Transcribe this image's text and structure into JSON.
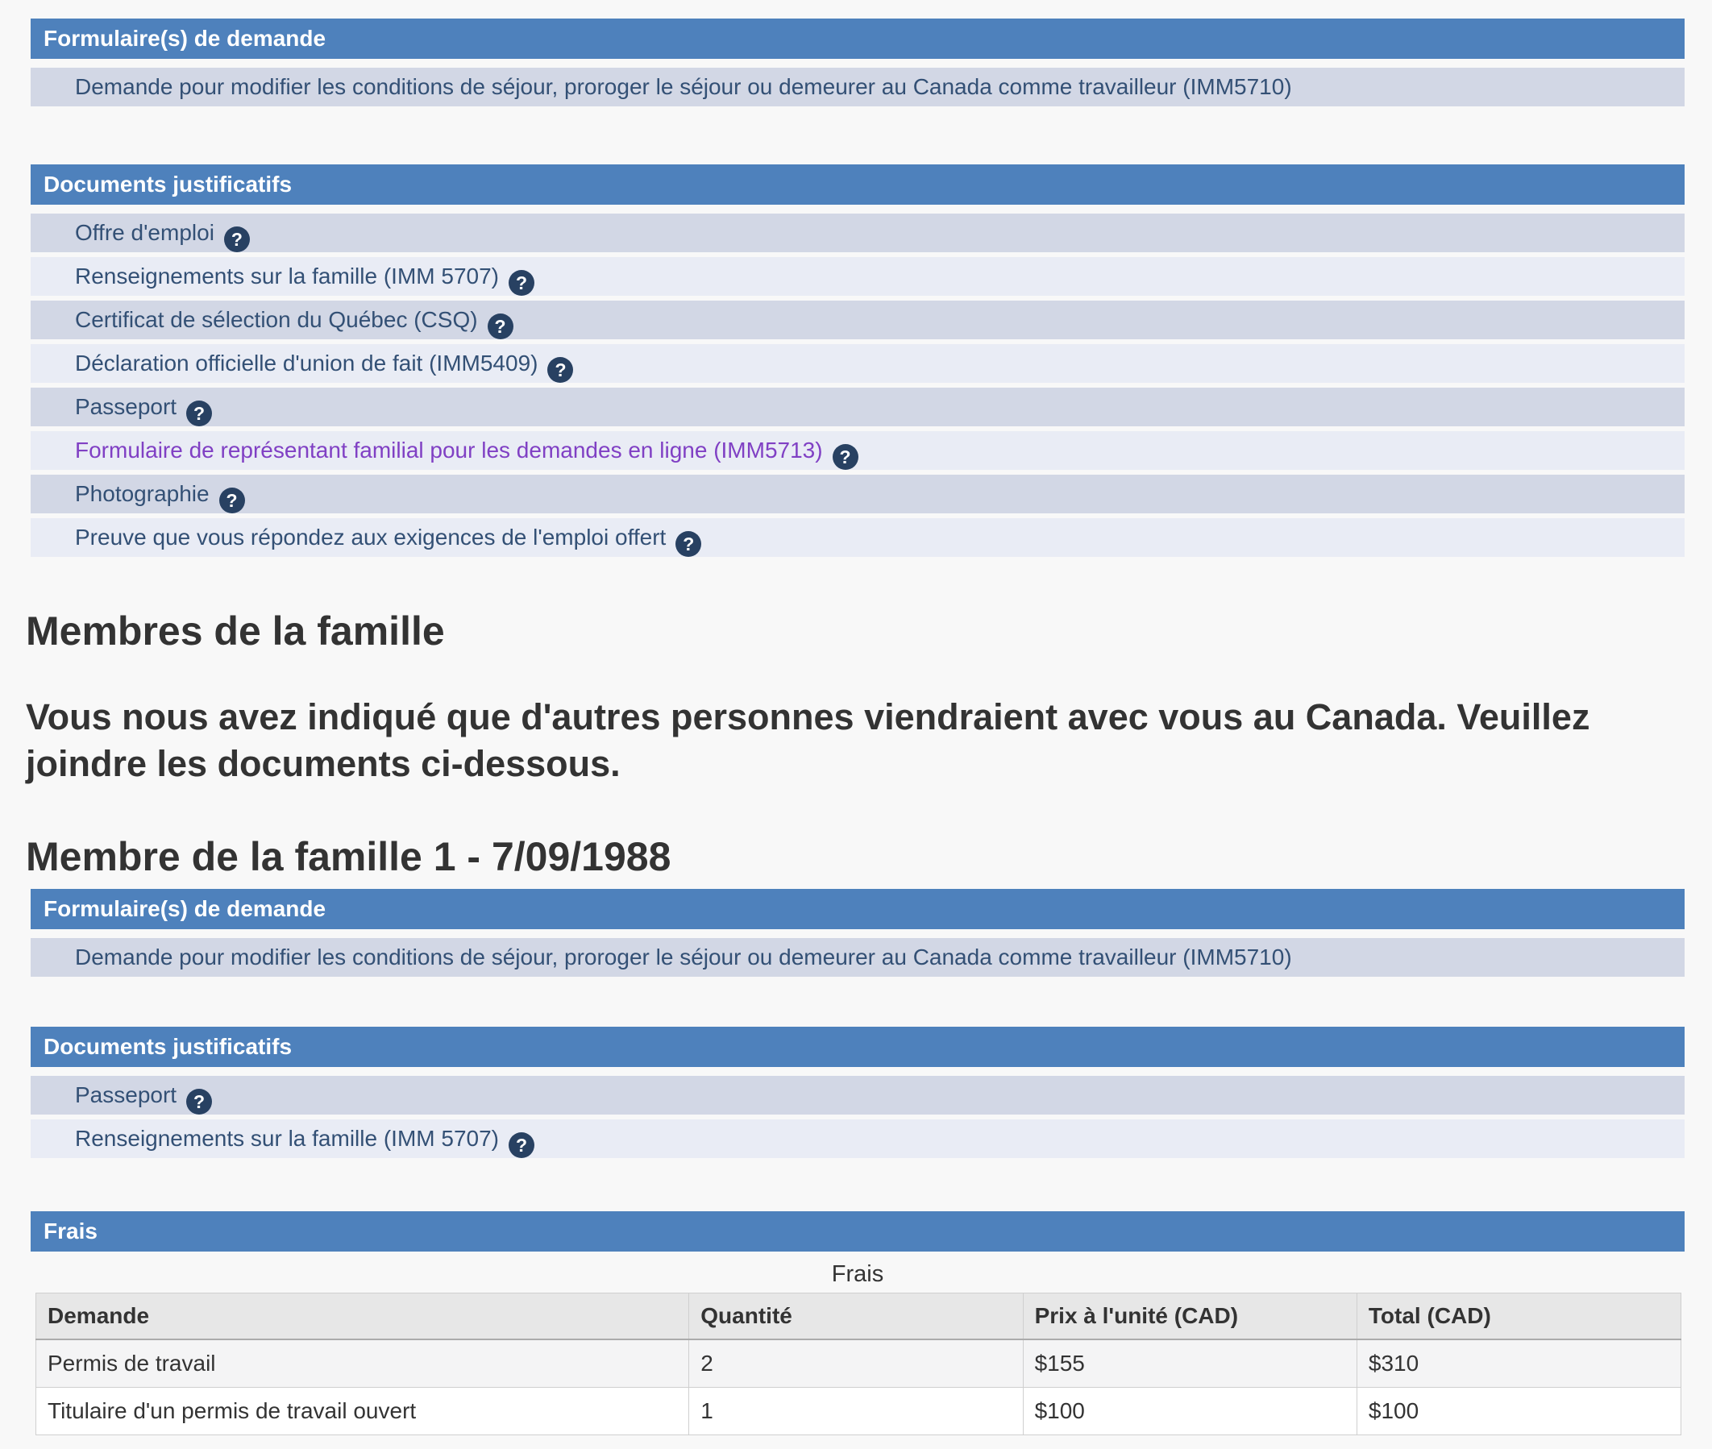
{
  "colors": {
    "page_background": "#F8F8F8",
    "band_background": "#4E81BC",
    "band_text": "#FFFFFF",
    "row_dark_background": "#D2D7E5",
    "row_light_background": "#E9ECF5",
    "item_link": "#335075",
    "item_link_visited": "#8040C4",
    "help_icon_background": "#284162",
    "heading_text": "#333333",
    "table_header_background": "#E7E7E7",
    "table_row_alt_background": "#F4F4F5"
  },
  "icons": {
    "help_glyph": "?"
  },
  "applicant": {
    "forms_panel": {
      "header": "Formulaire(s) de demande",
      "items": [
        {
          "label": "Demande pour modifier les conditions de séjour, proroger le séjour ou demeurer au Canada comme travailleur (IMM5710)"
        }
      ]
    },
    "documents_panel": {
      "header": "Documents justificatifs",
      "items": [
        {
          "label": "Offre d'emploi"
        },
        {
          "label": "Renseignements sur la famille (IMM 5707)"
        },
        {
          "label": "Certificat de sélection du Québec (CSQ)"
        },
        {
          "label": "Déclaration officielle d'union de fait (IMM5409)"
        },
        {
          "label": "Passeport"
        },
        {
          "label": "Formulaire de représentant familial pour les demandes en ligne (IMM5713)",
          "visited": true
        },
        {
          "label": "Photographie"
        },
        {
          "label": "Preuve que vous répondez aux exigences de l'emploi offert"
        }
      ]
    }
  },
  "family_members": {
    "heading": "Membres de la famille",
    "intro": "Vous nous avez indiqué que d'autres personnes viendraient avec vous au Canada. Veuillez joindre les documents ci-dessous.",
    "member1": {
      "heading": "Membre de la famille 1 - 7/09/1988",
      "forms_panel": {
        "header": "Formulaire(s) de demande",
        "items": [
          {
            "label": "Demande pour modifier les conditions de séjour, proroger le séjour ou demeurer au Canada comme travailleur (IMM5710)"
          }
        ]
      },
      "documents_panel": {
        "header": "Documents justificatifs",
        "items": [
          {
            "label": "Passeport"
          },
          {
            "label": "Renseignements sur la famille (IMM 5707)"
          }
        ]
      }
    }
  },
  "fees": {
    "header": "Frais",
    "table": {
      "caption": "Frais",
      "columns": [
        "Demande",
        "Quantité",
        "Prix à l'unité (CAD)",
        "Total (CAD)"
      ],
      "rows": [
        [
          "Permis de travail",
          "2",
          "$155",
          "$310"
        ],
        [
          "Titulaire d'un permis de travail ouvert",
          "1",
          "$100",
          "$100"
        ]
      ]
    }
  }
}
